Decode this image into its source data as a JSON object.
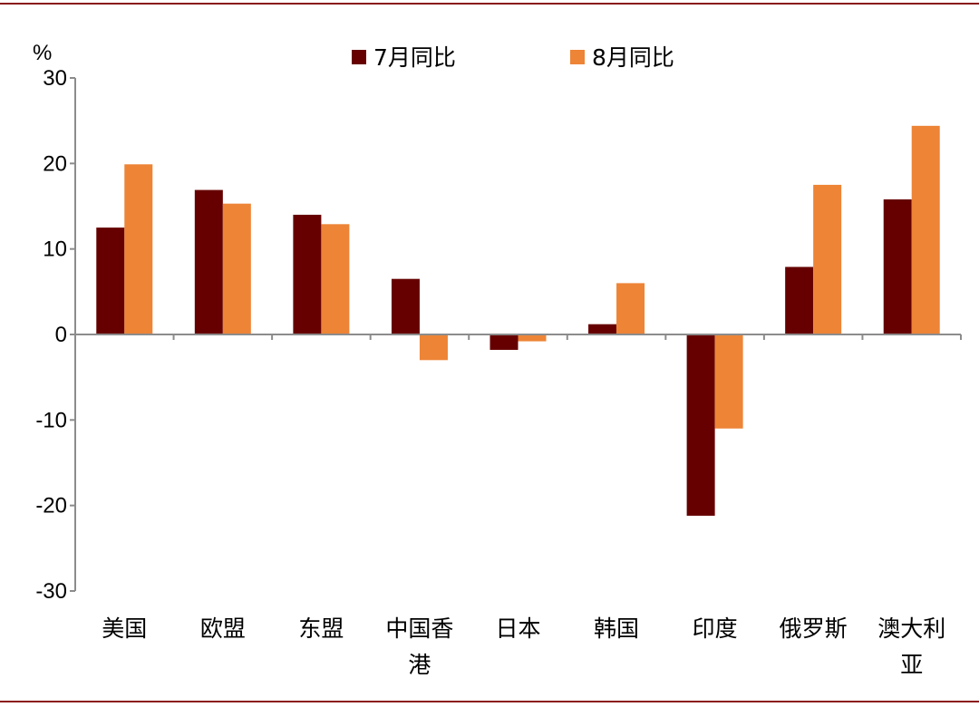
{
  "chart_data": {
    "type": "bar",
    "unit": "%",
    "categories": [
      [
        "美国"
      ],
      [
        "欧盟"
      ],
      [
        "东盟"
      ],
      [
        "中国香",
        "港"
      ],
      [
        "日本"
      ],
      [
        "韩国"
      ],
      [
        "印度"
      ],
      [
        "俄罗斯"
      ],
      [
        "澳大利",
        "亚"
      ]
    ],
    "series": [
      {
        "name": "7月同比",
        "color": "#660000",
        "values": [
          12.5,
          16.9,
          14.0,
          6.5,
          -1.8,
          1.2,
          -21.2,
          7.9,
          15.8
        ]
      },
      {
        "name": "8月同比",
        "color": "#ED8436",
        "values": [
          19.9,
          15.3,
          12.9,
          -3.0,
          -0.8,
          6.0,
          -11.0,
          17.5,
          24.4
        ]
      }
    ],
    "yticks": [
      30,
      20,
      10,
      0,
      -10,
      -20,
      -30
    ],
    "ylim": [
      -30,
      30
    ],
    "grid": false,
    "legend_position": "top"
  },
  "frame_color": "#8B1A1A"
}
